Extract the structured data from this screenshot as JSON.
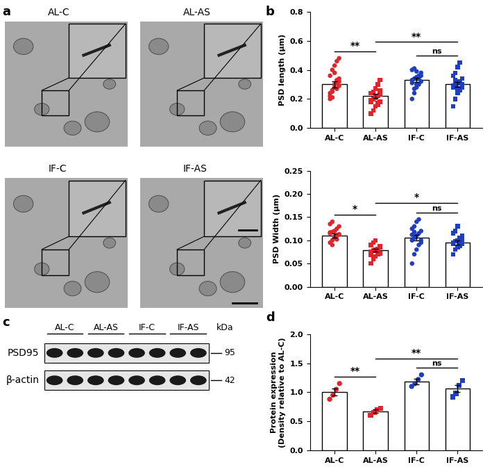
{
  "chart_data": [
    {
      "type": "bar",
      "panel": "b",
      "ylabel": "PSD length (μm)",
      "categories": [
        "AL-C",
        "AL-AS",
        "IF-C",
        "IF-AS"
      ],
      "values": [
        0.3,
        0.22,
        0.33,
        0.3
      ],
      "errors": [
        0.02,
        0.015,
        0.015,
        0.015
      ],
      "points": [
        [
          0.22,
          0.25,
          0.28,
          0.31,
          0.34,
          0.36,
          0.4,
          0.43,
          0.46,
          0.48,
          0.2,
          0.26,
          0.3,
          0.33,
          0.29,
          0.24,
          0.21,
          0.38,
          0.27,
          0.32
        ],
        [
          0.1,
          0.12,
          0.15,
          0.17,
          0.18,
          0.19,
          0.2,
          0.21,
          0.22,
          0.23,
          0.24,
          0.25,
          0.27,
          0.3,
          0.33,
          0.18,
          0.2,
          0.22,
          0.16,
          0.26
        ],
        [
          0.2,
          0.24,
          0.28,
          0.3,
          0.32,
          0.33,
          0.34,
          0.35,
          0.36,
          0.38,
          0.4,
          0.41,
          0.3,
          0.34,
          0.36,
          0.31,
          0.27,
          0.39
        ],
        [
          0.15,
          0.2,
          0.24,
          0.26,
          0.28,
          0.29,
          0.3,
          0.31,
          0.32,
          0.34,
          0.36,
          0.38,
          0.42,
          0.45,
          0.3,
          0.28,
          0.33,
          0.27
        ]
      ],
      "colors": [
        "#e3242b",
        "#e3242b",
        "#1f3fbf",
        "#1f3fbf"
      ],
      "markers": [
        "o",
        "s",
        "o",
        "s"
      ],
      "ylim": [
        0,
        0.8
      ],
      "yticks": [
        {
          "value": 0,
          "label": "0.0"
        },
        0.2,
        0.4,
        0.6,
        0.8
      ],
      "annotations": [
        {
          "from": "AL-C",
          "to": "AL-AS",
          "text": "**"
        },
        {
          "from": "IF-C",
          "to": "IF-AS",
          "text": "ns"
        },
        {
          "from": "AL-AS",
          "to": "IF-AS",
          "text": "**"
        }
      ]
    },
    {
      "type": "bar",
      "ylabel": "PSD Width (μm)",
      "categories": [
        "AL-C",
        "AL-AS",
        "IF-C",
        "IF-AS"
      ],
      "values": [
        0.11,
        0.078,
        0.106,
        0.095
      ],
      "errors": [
        0.004,
        0.003,
        0.006,
        0.004
      ],
      "points": [
        [
          0.095,
          0.1,
          0.105,
          0.11,
          0.112,
          0.115,
          0.118,
          0.12,
          0.125,
          0.13,
          0.135,
          0.14,
          0.108,
          0.102,
          0.113,
          0.117,
          0.09,
          0.12
        ],
        [
          0.05,
          0.06,
          0.065,
          0.07,
          0.072,
          0.075,
          0.078,
          0.08,
          0.082,
          0.085,
          0.09,
          0.095,
          0.1,
          0.076,
          0.088,
          0.068
        ],
        [
          0.05,
          0.07,
          0.08,
          0.09,
          0.095,
          0.1,
          0.105,
          0.11,
          0.115,
          0.12,
          0.125,
          0.13,
          0.14,
          0.145,
          0.1,
          0.112,
          0.118
        ],
        [
          0.07,
          0.08,
          0.085,
          0.09,
          0.092,
          0.095,
          0.098,
          0.1,
          0.105,
          0.11,
          0.115,
          0.12,
          0.13,
          0.088,
          0.102,
          0.093
        ]
      ],
      "colors": [
        "#e3242b",
        "#e3242b",
        "#1f3fbf",
        "#1f3fbf"
      ],
      "markers": [
        "o",
        "s",
        "o",
        "s"
      ],
      "ylim": [
        0,
        0.25
      ],
      "yticks": [
        {
          "value": 0,
          "label": "0.00"
        },
        {
          "value": 0.05,
          "label": "0.05"
        },
        {
          "value": 0.1,
          "label": "0.10"
        },
        {
          "value": 0.15,
          "label": "0.15"
        },
        {
          "value": 0.2,
          "label": "0.20"
        },
        {
          "value": 0.25,
          "label": "0.25"
        }
      ],
      "annotations": [
        {
          "from": "AL-C",
          "to": "AL-AS",
          "text": "*"
        },
        {
          "from": "IF-C",
          "to": "IF-AS",
          "text": "ns"
        },
        {
          "from": "AL-AS",
          "to": "IF-AS",
          "text": "*"
        }
      ]
    },
    {
      "type": "bar",
      "panel": "d",
      "ylabel": "Protein expression\n(Density relative to AL-C)",
      "categories": [
        "AL-C",
        "AL-AS",
        "IF-C",
        "IF-AS"
      ],
      "values": [
        1.0,
        0.67,
        1.18,
        1.06
      ],
      "errors": [
        0.06,
        0.03,
        0.05,
        0.06
      ],
      "points": [
        [
          0.88,
          0.95,
          1.05,
          1.15
        ],
        [
          0.6,
          0.65,
          0.7,
          0.72
        ],
        [
          1.1,
          1.15,
          1.22,
          1.3
        ],
        [
          0.92,
          0.98,
          1.12,
          1.2
        ]
      ],
      "colors": [
        "#e3242b",
        "#e3242b",
        "#1f3fbf",
        "#1f3fbf"
      ],
      "markers": [
        "o",
        "s",
        "o",
        "s"
      ],
      "ylim": [
        0,
        2.0
      ],
      "yticks": [
        {
          "value": 0,
          "label": "0.0"
        },
        0.5,
        1.0,
        1.5,
        2.0
      ],
      "annotations": [
        {
          "from": "AL-C",
          "to": "AL-AS",
          "text": "**"
        },
        {
          "from": "IF-C",
          "to": "IF-AS",
          "text": "ns"
        },
        {
          "from": "AL-AS",
          "to": "IF-AS",
          "text": "**"
        }
      ]
    }
  ],
  "micrographs": {
    "panel": "a",
    "labels": [
      "AL-C",
      "AL-AS",
      "IF-C",
      "IF-AS"
    ]
  },
  "blot": {
    "panel": "c",
    "groups": [
      "AL-C",
      "AL-AS",
      "IF-C",
      "IF-AS"
    ],
    "bands": [
      "PSD95",
      "β-actin"
    ],
    "unit": "kDa",
    "sizes": [
      95,
      42
    ]
  }
}
